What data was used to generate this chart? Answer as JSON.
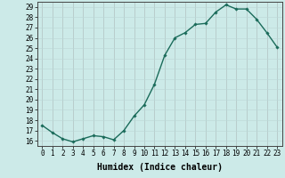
{
  "x": [
    0,
    1,
    2,
    3,
    4,
    5,
    6,
    7,
    8,
    9,
    10,
    11,
    12,
    13,
    14,
    15,
    16,
    17,
    18,
    19,
    20,
    21,
    22,
    23
  ],
  "y": [
    17.5,
    16.8,
    16.2,
    15.9,
    16.2,
    16.5,
    16.4,
    16.1,
    17.0,
    18.4,
    19.5,
    21.5,
    24.3,
    26.0,
    26.5,
    27.3,
    27.4,
    28.5,
    29.2,
    28.8,
    28.8,
    27.8,
    26.5,
    25.1
  ],
  "line_color": "#1a6b5a",
  "marker": "D",
  "marker_size": 1.8,
  "line_width": 1.0,
  "xlabel": "Humidex (Indice chaleur)",
  "xlim": [
    -0.5,
    23.5
  ],
  "ylim": [
    15.5,
    29.5
  ],
  "yticks": [
    16,
    17,
    18,
    19,
    20,
    21,
    22,
    23,
    24,
    25,
    26,
    27,
    28,
    29
  ],
  "xticks": [
    0,
    1,
    2,
    3,
    4,
    5,
    6,
    7,
    8,
    9,
    10,
    11,
    12,
    13,
    14,
    15,
    16,
    17,
    18,
    19,
    20,
    21,
    22,
    23
  ],
  "xtick_labels": [
    "0",
    "1",
    "2",
    "3",
    "4",
    "5",
    "6",
    "7",
    "8",
    "9",
    "10",
    "11",
    "12",
    "13",
    "14",
    "15",
    "16",
    "17",
    "18",
    "19",
    "20",
    "21",
    "22",
    "23"
  ],
  "ytick_labels": [
    "16",
    "17",
    "18",
    "19",
    "20",
    "21",
    "22",
    "23",
    "24",
    "25",
    "26",
    "27",
    "28",
    "29"
  ],
  "bg_color": "#cceae8",
  "grid_color": "#b0d4d2",
  "tick_fontsize": 5.5,
  "xlabel_fontsize": 7.0
}
